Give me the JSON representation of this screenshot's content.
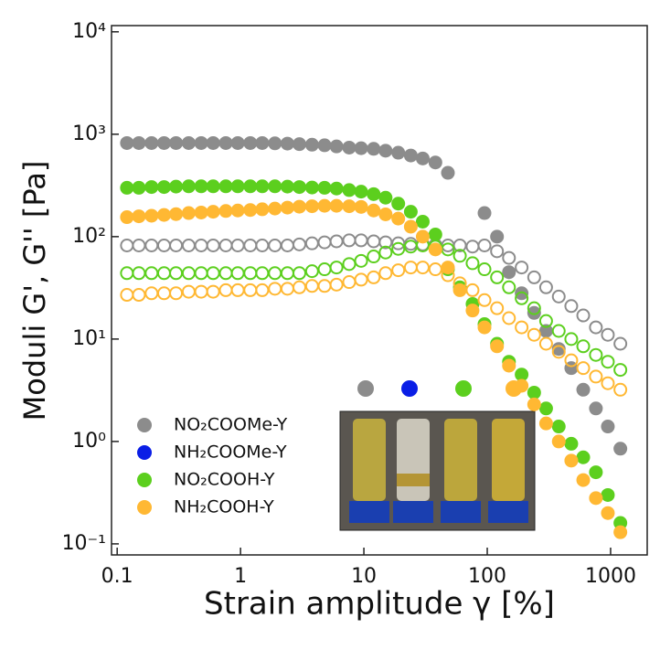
{
  "chart_data": {
    "type": "scatter",
    "y_label": "Moduli G', G'' [Pa]",
    "x_label": "Strain amplitude γ  [%]",
    "xlog": true,
    "ylog": true,
    "xlim": [
      0.09,
      1980
    ],
    "ylim": [
      0.078,
      11500
    ],
    "xticks": [
      0.1,
      1,
      10,
      100,
      1000
    ],
    "yticks": [
      {
        "value": 0.1,
        "label": "10⁻¹"
      },
      {
        "value": 1,
        "label": "10⁰"
      },
      {
        "value": 10,
        "label": "10¹"
      },
      {
        "value": 100,
        "label": "10²"
      },
      {
        "value": 1000,
        "label": "10³"
      },
      {
        "value": 10000,
        "label": "10⁴"
      }
    ],
    "legend": "lower left",
    "x": [
      0.12,
      0.15,
      0.19,
      0.24,
      0.3,
      0.38,
      0.48,
      0.6,
      0.76,
      0.95,
      1.2,
      1.5,
      1.9,
      2.4,
      3,
      3.8,
      4.8,
      6,
      7.6,
      9.5,
      12,
      15,
      19,
      24,
      30,
      38,
      48,
      60,
      76,
      95,
      120,
      150,
      190,
      240,
      300,
      380,
      480,
      600,
      760,
      950,
      1200
    ],
    "series": [
      {
        "name": "NO₂COOMe-Y",
        "color": "#8c8c8c",
        "storage": [
          820,
          820,
          820,
          820,
          820,
          820,
          820,
          820,
          820,
          820,
          820,
          820,
          815,
          810,
          800,
          790,
          780,
          760,
          740,
          730,
          720,
          690,
          660,
          620,
          580,
          530,
          420,
          null,
          null,
          170,
          100,
          45,
          28,
          18,
          12,
          8,
          5.2,
          3.2,
          2.1,
          1.4,
          0.85
        ],
        "loss": [
          82,
          82,
          82,
          82,
          82,
          82,
          82,
          82,
          82,
          82,
          82,
          82,
          82,
          82,
          84,
          86,
          88,
          90,
          92,
          92,
          90,
          88,
          86,
          85,
          84,
          83,
          82,
          82,
          80,
          82,
          72,
          62,
          50,
          40,
          32,
          26,
          21,
          17,
          13,
          11,
          9
        ]
      },
      {
        "name": "NH₂COOMe-Y",
        "color": "#0a1ee6",
        "storage": [],
        "loss": []
      },
      {
        "name": "NO₂COOH-Y",
        "color": "#5ccf1e",
        "storage": [
          300,
          300,
          305,
          305,
          308,
          310,
          310,
          310,
          310,
          310,
          310,
          310,
          310,
          308,
          305,
          302,
          300,
          295,
          285,
          275,
          260,
          240,
          210,
          175,
          140,
          105,
          48,
          32,
          22,
          14,
          9,
          6,
          4.5,
          3,
          2.1,
          1.4,
          0.95,
          0.7,
          0.5,
          0.3,
          0.16
        ],
        "loss": [
          44,
          44,
          44,
          44,
          44,
          44,
          44,
          44,
          44,
          44,
          44,
          44,
          44,
          44,
          44,
          46,
          48,
          50,
          54,
          58,
          64,
          70,
          76,
          80,
          82,
          80,
          75,
          65,
          55,
          48,
          40,
          32,
          25,
          20,
          15,
          12,
          10,
          8.5,
          7,
          6,
          5
        ]
      },
      {
        "name": "NH₂COOH-Y",
        "color": "#ffb833",
        "storage": [
          155,
          158,
          160,
          163,
          166,
          170,
          172,
          175,
          178,
          180,
          182,
          185,
          188,
          192,
          196,
          198,
          200,
          200,
          198,
          195,
          180,
          165,
          150,
          125,
          100,
          75,
          50,
          30,
          19,
          13,
          8.5,
          5.5,
          3.5,
          2.3,
          1.5,
          1,
          0.65,
          0.42,
          0.28,
          0.2,
          0.13
        ],
        "loss": [
          27,
          27,
          28,
          28,
          28,
          29,
          29,
          29,
          30,
          30,
          30,
          30,
          31,
          31,
          32,
          33,
          33,
          34,
          36,
          38,
          40,
          44,
          47,
          50,
          50,
          48,
          42,
          35,
          30,
          24,
          20,
          16,
          13,
          11,
          9,
          7.5,
          6.2,
          5.2,
          4.3,
          3.7,
          3.2
        ]
      }
    ]
  }
}
